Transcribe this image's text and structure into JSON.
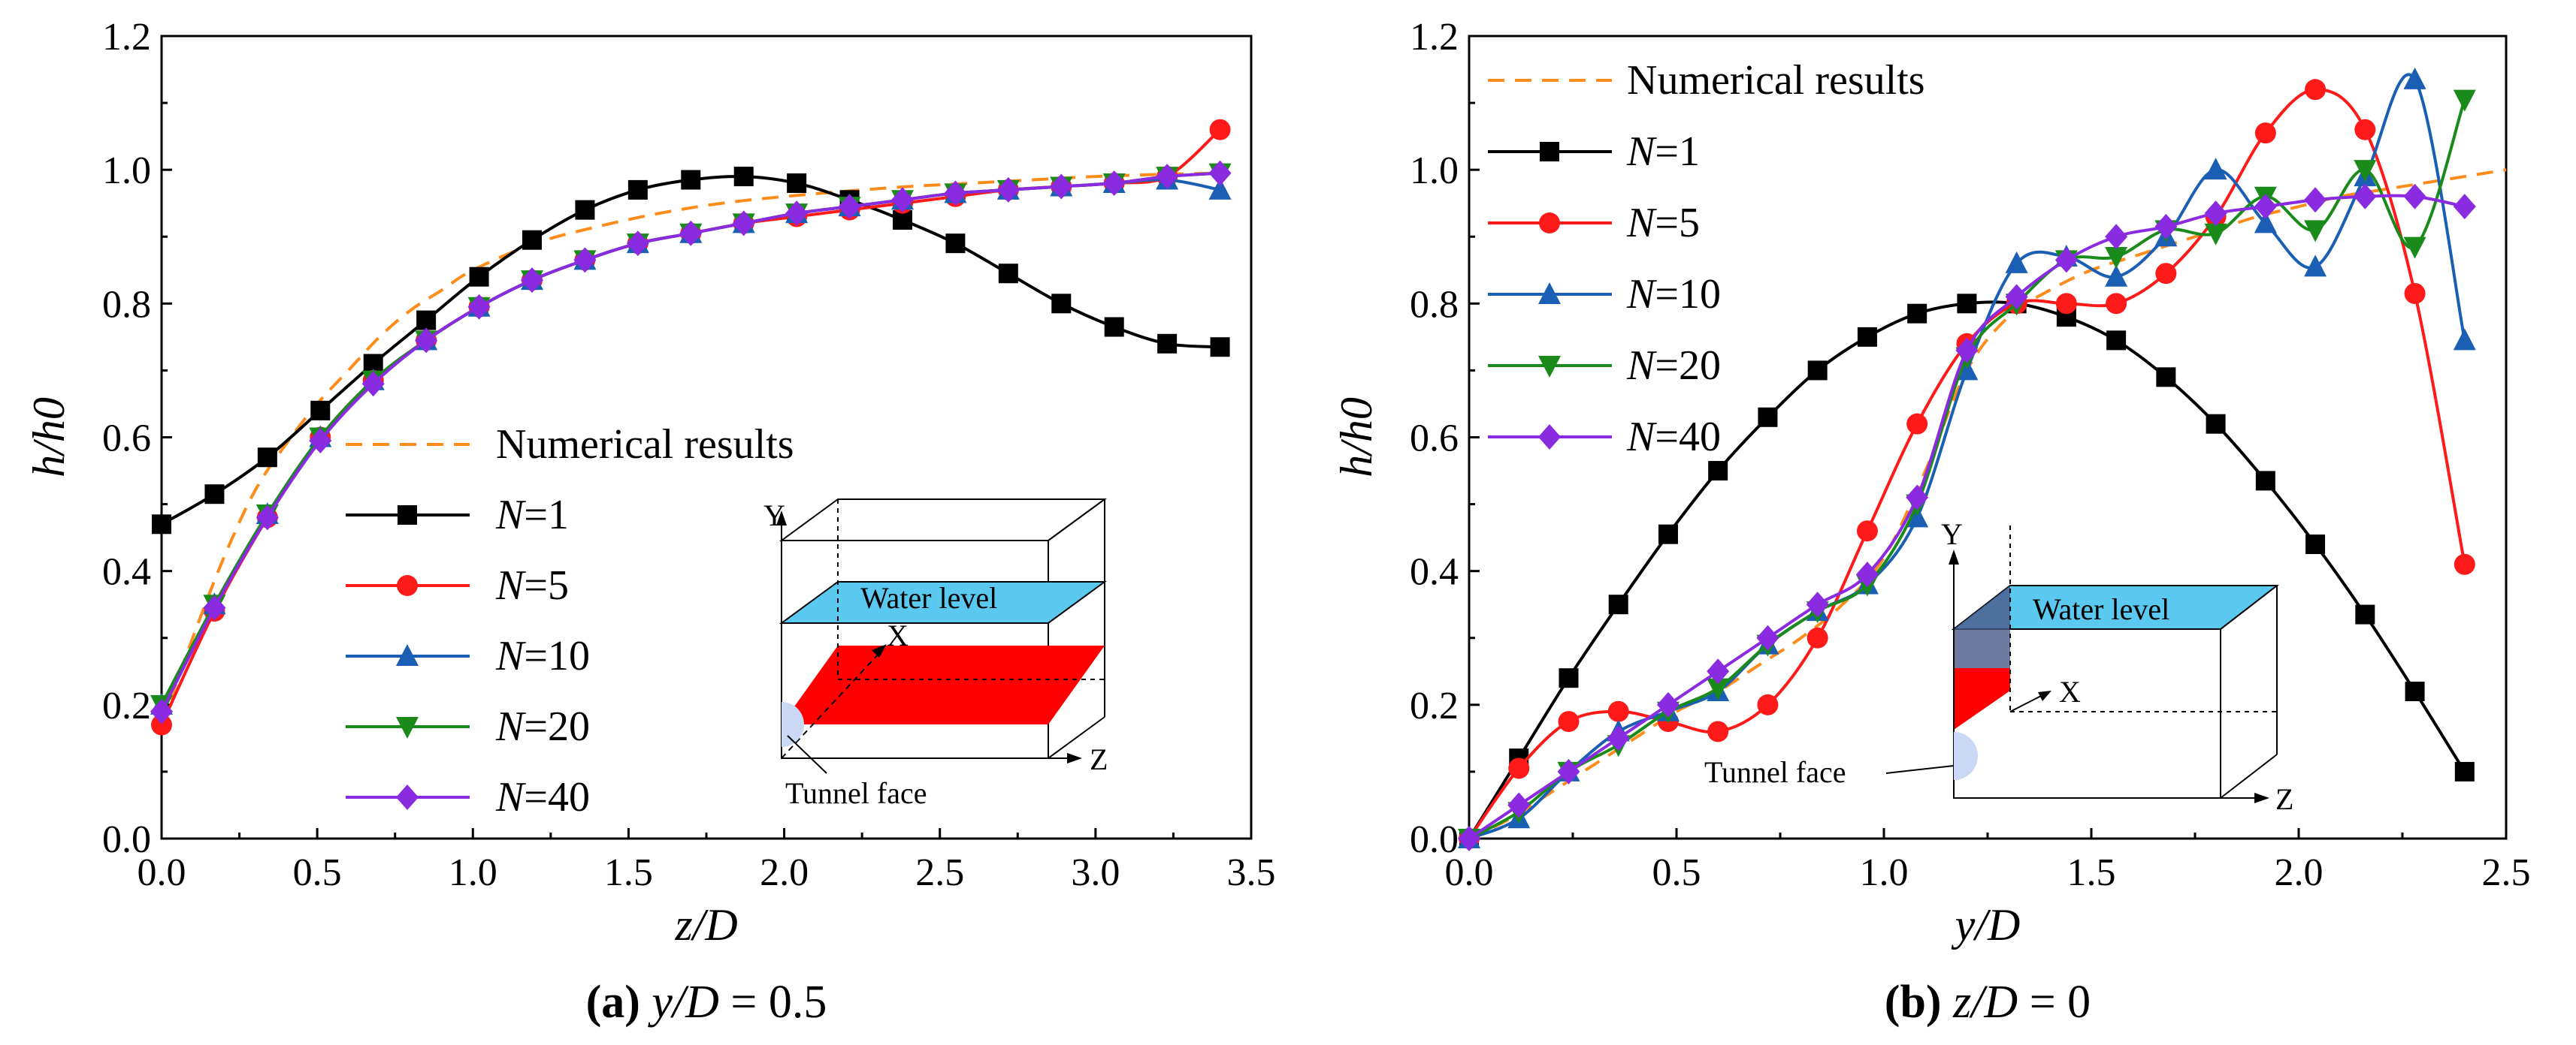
{
  "chart_data": [
    {
      "type": "line",
      "panel_label": "(a)",
      "caption_var": "y/D",
      "caption_value": "= 0.5",
      "xlabel": "z/D",
      "ylabel": "h/h0",
      "xlim": [
        0,
        3.5
      ],
      "ylim": [
        0,
        1.2
      ],
      "xticks": [
        "0.0",
        "0.5",
        "1.0",
        "1.5",
        "2.0",
        "2.5",
        "3.0",
        "3.5"
      ],
      "yticks": [
        "0.0",
        "0.2",
        "0.4",
        "0.6",
        "0.8",
        "1.0",
        "1.2"
      ],
      "legend_title": "Numerical results",
      "numerical": {
        "x": [
          0.0,
          0.1,
          0.2,
          0.3,
          0.4,
          0.5,
          0.6,
          0.7,
          0.8,
          0.9,
          1.0,
          1.2,
          1.4,
          1.6,
          1.8,
          2.0,
          2.2,
          2.4,
          2.6,
          2.8,
          3.0,
          3.2,
          3.4
        ],
        "y": [
          0.17,
          0.3,
          0.42,
          0.52,
          0.59,
          0.65,
          0.7,
          0.75,
          0.79,
          0.82,
          0.85,
          0.89,
          0.915,
          0.935,
          0.95,
          0.96,
          0.968,
          0.975,
          0.98,
          0.985,
          0.99,
          0.993,
          0.995
        ]
      },
      "series": [
        {
          "name": "N=1",
          "color": "#000000",
          "marker": "square",
          "x": [
            0,
            0.17,
            0.34,
            0.51,
            0.68,
            0.85,
            1.02,
            1.19,
            1.36,
            1.53,
            1.7,
            1.87,
            2.04,
            2.21,
            2.38,
            2.55,
            2.72,
            2.89,
            3.06,
            3.23,
            3.4
          ],
          "y": [
            0.47,
            0.515,
            0.57,
            0.64,
            0.71,
            0.775,
            0.84,
            0.895,
            0.94,
            0.97,
            0.985,
            0.99,
            0.98,
            0.955,
            0.925,
            0.89,
            0.845,
            0.8,
            0.765,
            0.74,
            0.735
          ]
        },
        {
          "name": "N=5",
          "color": "#ff1a1a",
          "marker": "circle",
          "x": [
            0,
            0.17,
            0.34,
            0.51,
            0.68,
            0.85,
            1.02,
            1.19,
            1.36,
            1.53,
            1.7,
            1.87,
            2.04,
            2.21,
            2.38,
            2.55,
            2.72,
            2.89,
            3.06,
            3.23,
            3.4
          ],
          "y": [
            0.17,
            0.34,
            0.48,
            0.6,
            0.685,
            0.745,
            0.795,
            0.835,
            0.865,
            0.89,
            0.905,
            0.92,
            0.93,
            0.94,
            0.95,
            0.96,
            0.97,
            0.975,
            0.98,
            0.99,
            1.06
          ]
        },
        {
          "name": "N=10",
          "color": "#1a5fb4",
          "marker": "triangle-up",
          "x": [
            0,
            0.17,
            0.34,
            0.51,
            0.68,
            0.85,
            1.02,
            1.19,
            1.36,
            1.53,
            1.7,
            1.87,
            2.04,
            2.21,
            2.38,
            2.55,
            2.72,
            2.89,
            3.06,
            3.23,
            3.4
          ],
          "y": [
            0.2,
            0.35,
            0.485,
            0.6,
            0.685,
            0.745,
            0.795,
            0.835,
            0.865,
            0.89,
            0.905,
            0.92,
            0.935,
            0.945,
            0.955,
            0.965,
            0.97,
            0.975,
            0.98,
            0.985,
            0.97
          ]
        },
        {
          "name": "N=20",
          "color": "#1a8a1a",
          "marker": "triangle-down",
          "x": [
            0,
            0.17,
            0.34,
            0.51,
            0.68,
            0.85,
            1.02,
            1.19,
            1.36,
            1.53,
            1.7,
            1.87,
            2.04,
            2.21,
            2.38,
            2.55,
            2.72,
            2.89,
            3.06,
            3.23,
            3.4
          ],
          "y": [
            0.2,
            0.35,
            0.485,
            0.6,
            0.685,
            0.745,
            0.795,
            0.835,
            0.865,
            0.89,
            0.905,
            0.92,
            0.935,
            0.945,
            0.955,
            0.965,
            0.97,
            0.975,
            0.98,
            0.99,
            0.995
          ]
        },
        {
          "name": "N=40",
          "color": "#8a2be2",
          "marker": "diamond",
          "x": [
            0,
            0.17,
            0.34,
            0.51,
            0.68,
            0.85,
            1.02,
            1.19,
            1.36,
            1.53,
            1.7,
            1.87,
            2.04,
            2.21,
            2.38,
            2.55,
            2.72,
            2.89,
            3.06,
            3.23,
            3.4
          ],
          "y": [
            0.19,
            0.345,
            0.48,
            0.595,
            0.68,
            0.745,
            0.795,
            0.835,
            0.865,
            0.89,
            0.905,
            0.92,
            0.935,
            0.945,
            0.955,
            0.965,
            0.97,
            0.975,
            0.98,
            0.99,
            0.995
          ]
        }
      ],
      "inset": {
        "axis_y": "Y",
        "axis_x": "X",
        "axis_z": "Z",
        "water_label": "Water level",
        "tunnel_label": "Tunnel face"
      }
    },
    {
      "type": "line",
      "panel_label": "(b)",
      "caption_var": "z/D",
      "caption_value": "= 0",
      "xlabel": "y/D",
      "ylabel": "h/h0",
      "xlim": [
        0,
        2.5
      ],
      "ylim": [
        0,
        1.2
      ],
      "xticks": [
        "0.0",
        "0.5",
        "1.0",
        "1.5",
        "2.0",
        "2.5"
      ],
      "yticks": [
        "0.0",
        "0.2",
        "0.4",
        "0.6",
        "0.8",
        "1.0",
        "1.2"
      ],
      "legend_title": "Numerical results",
      "numerical": {
        "x": [
          0,
          0.1,
          0.2,
          0.3,
          0.4,
          0.5,
          0.6,
          0.7,
          0.8,
          0.9,
          1.0,
          1.1,
          1.2,
          1.3,
          1.4,
          1.5,
          1.6,
          1.7,
          1.8,
          1.9,
          2.0,
          2.1,
          2.2,
          2.3,
          2.4,
          2.5
        ],
        "y": [
          0,
          0.03,
          0.07,
          0.11,
          0.15,
          0.19,
          0.22,
          0.26,
          0.3,
          0.35,
          0.42,
          0.55,
          0.7,
          0.78,
          0.82,
          0.85,
          0.87,
          0.89,
          0.91,
          0.93,
          0.945,
          0.96,
          0.97,
          0.98,
          0.99,
          1.0
        ]
      },
      "series": [
        {
          "name": "N=1",
          "color": "#000000",
          "marker": "square",
          "x": [
            0,
            0.12,
            0.24,
            0.36,
            0.48,
            0.6,
            0.72,
            0.84,
            0.96,
            1.08,
            1.2,
            1.32,
            1.44,
            1.56,
            1.68,
            1.8,
            1.92,
            2.04,
            2.16,
            2.28,
            2.4
          ],
          "y": [
            0,
            0.12,
            0.24,
            0.35,
            0.455,
            0.55,
            0.63,
            0.7,
            0.75,
            0.785,
            0.8,
            0.8,
            0.78,
            0.745,
            0.69,
            0.62,
            0.535,
            0.44,
            0.335,
            0.22,
            0.1
          ]
        },
        {
          "name": "N=5",
          "color": "#ff1a1a",
          "marker": "circle",
          "x": [
            0,
            0.12,
            0.24,
            0.36,
            0.48,
            0.6,
            0.72,
            0.84,
            0.96,
            1.08,
            1.2,
            1.32,
            1.44,
            1.56,
            1.68,
            1.8,
            1.92,
            2.04,
            2.16,
            2.28,
            2.4
          ],
          "y": [
            0,
            0.105,
            0.175,
            0.19,
            0.175,
            0.16,
            0.2,
            0.3,
            0.46,
            0.62,
            0.74,
            0.8,
            0.8,
            0.8,
            0.845,
            0.93,
            1.055,
            1.12,
            1.06,
            0.815,
            0.41
          ]
        },
        {
          "name": "N=10",
          "color": "#1a5fb4",
          "marker": "triangle-up",
          "x": [
            0,
            0.12,
            0.24,
            0.36,
            0.48,
            0.6,
            0.72,
            0.84,
            0.96,
            1.08,
            1.2,
            1.32,
            1.44,
            1.56,
            1.68,
            1.8,
            1.92,
            2.04,
            2.16,
            2.28,
            2.4
          ],
          "y": [
            0,
            0.03,
            0.1,
            0.16,
            0.19,
            0.22,
            0.29,
            0.34,
            0.38,
            0.48,
            0.7,
            0.86,
            0.87,
            0.84,
            0.9,
            1.0,
            0.92,
            0.855,
            0.99,
            1.135,
            0.745
          ]
        },
        {
          "name": "N=20",
          "color": "#1a8a1a",
          "marker": "triangle-down",
          "x": [
            0,
            0.12,
            0.24,
            0.36,
            0.48,
            0.6,
            0.72,
            0.84,
            0.96,
            1.08,
            1.2,
            1.32,
            1.44,
            1.56,
            1.68,
            1.8,
            1.92,
            2.04,
            2.16,
            2.28,
            2.4
          ],
          "y": [
            0,
            0.04,
            0.1,
            0.14,
            0.19,
            0.225,
            0.29,
            0.34,
            0.38,
            0.5,
            0.72,
            0.8,
            0.865,
            0.87,
            0.91,
            0.905,
            0.96,
            0.91,
            1.0,
            0.885,
            1.105
          ]
        },
        {
          "name": "N=40",
          "color": "#8a2be2",
          "marker": "diamond",
          "x": [
            0,
            0.12,
            0.24,
            0.36,
            0.48,
            0.6,
            0.72,
            0.84,
            0.96,
            1.08,
            1.2,
            1.32,
            1.44,
            1.56,
            1.68,
            1.8,
            1.92,
            2.04,
            2.16,
            2.28,
            2.4
          ],
          "y": [
            0,
            0.05,
            0.1,
            0.15,
            0.2,
            0.25,
            0.3,
            0.35,
            0.395,
            0.51,
            0.73,
            0.81,
            0.865,
            0.9,
            0.915,
            0.935,
            0.945,
            0.955,
            0.96,
            0.96,
            0.945
          ]
        }
      ],
      "inset": {
        "axis_y": "Y",
        "axis_x": "X",
        "axis_z": "Z",
        "water_label": "Water level",
        "tunnel_label": "Tunnel face"
      }
    }
  ]
}
